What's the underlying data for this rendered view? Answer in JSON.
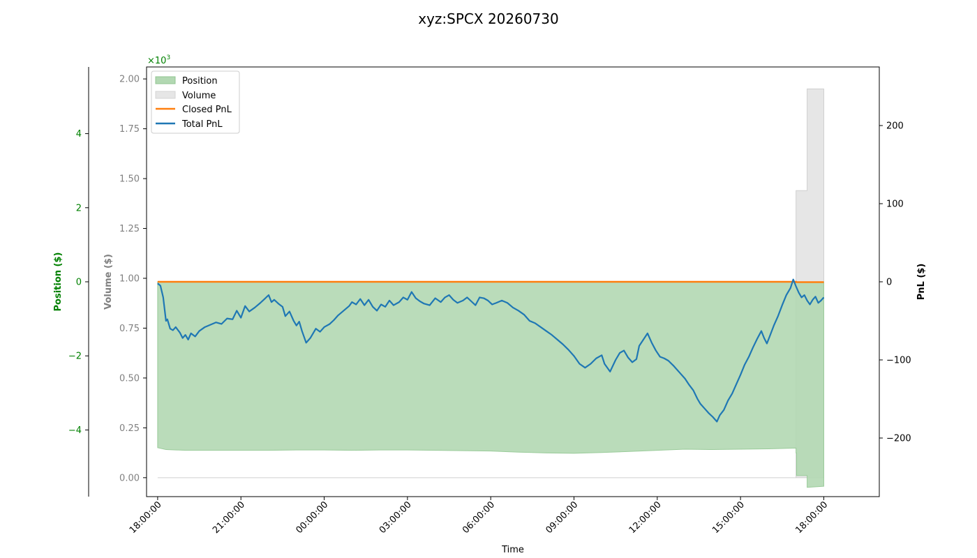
{
  "colors": {
    "position": "#008000",
    "position_fill": "#b2d8b2",
    "position_overlap_fill": "#a0c8a0",
    "volume": "#808080",
    "volume_fill": "#e6e6e6",
    "closed_pnl": "#ff7f0e",
    "total_pnl": "#1f77b4",
    "pnl_axis": "#000000"
  },
  "chart_data": {
    "type": "area",
    "title": "xyz:SPCX 20260730",
    "xlabel": "Time",
    "x_range_hours": [
      -0.4,
      26.0
    ],
    "x_ticks": [
      {
        "h": 0,
        "label": "18:00:00"
      },
      {
        "h": 3,
        "label": "21:00:00"
      },
      {
        "h": 6,
        "label": "00:00:00"
      },
      {
        "h": 9,
        "label": "03:00:00"
      },
      {
        "h": 12,
        "label": "06:00:00"
      },
      {
        "h": 15,
        "label": "09:00:00"
      },
      {
        "h": 18,
        "label": "12:00:00"
      },
      {
        "h": 21,
        "label": "15:00:00"
      },
      {
        "h": 24,
        "label": "18:00:00"
      }
    ],
    "axes": {
      "position": {
        "label": "Position ($)",
        "ylim": [
          -5.8,
          5.8
        ],
        "ticks": [
          4,
          2,
          0,
          -2,
          -4
        ],
        "tick_labels": [
          "4",
          "2",
          "0",
          "−2",
          "−4"
        ],
        "scale_label": "×10",
        "scale_exp": "3"
      },
      "volume": {
        "label": "Volume ($)",
        "ylim": [
          -0.095,
          2.06
        ],
        "ticks": [
          0,
          0.25,
          0.5,
          0.75,
          1.0,
          1.25,
          1.5,
          1.75,
          2.0
        ],
        "tick_labels": [
          "0.00",
          "0.25",
          "0.50",
          "0.75",
          "1.00",
          "1.25",
          "1.50",
          "1.75",
          "2.00"
        ]
      },
      "pnl": {
        "label": "PnL ($)",
        "ylim": [
          -275,
          275
        ],
        "ticks": [
          200,
          100,
          0,
          -100,
          -200
        ],
        "tick_labels": [
          "200",
          "100",
          "0",
          "−100",
          "−200"
        ]
      }
    },
    "legend": {
      "placement": "top-left",
      "entries": [
        "Position",
        "Volume",
        "Closed PnL",
        "Total PnL"
      ]
    },
    "series": [
      {
        "name": "Position",
        "axis": "position",
        "style": "area",
        "points": [
          [
            0,
            -4.48
          ],
          [
            0.3,
            -4.53
          ],
          [
            1,
            -4.55
          ],
          [
            2,
            -4.55
          ],
          [
            3,
            -4.55
          ],
          [
            4,
            -4.55
          ],
          [
            5,
            -4.54
          ],
          [
            6,
            -4.54
          ],
          [
            7,
            -4.55
          ],
          [
            8,
            -4.54
          ],
          [
            9,
            -4.54
          ],
          [
            10,
            -4.55
          ],
          [
            11,
            -4.56
          ],
          [
            12,
            -4.57
          ],
          [
            13,
            -4.6
          ],
          [
            14,
            -4.62
          ],
          [
            15,
            -4.63
          ],
          [
            16,
            -4.61
          ],
          [
            17,
            -4.58
          ],
          [
            18,
            -4.55
          ],
          [
            19,
            -4.52
          ],
          [
            20,
            -4.53
          ],
          [
            21,
            -4.52
          ],
          [
            22,
            -4.51
          ],
          [
            23.0,
            -4.49
          ],
          [
            23.0,
            -4.62
          ],
          [
            23.02,
            -4.62
          ],
          [
            23.02,
            -5.23
          ],
          [
            23.4,
            -5.23
          ],
          [
            23.4,
            -5.55
          ],
          [
            24.0,
            -5.52
          ]
        ]
      },
      {
        "name": "Volume",
        "axis": "volume",
        "style": "area",
        "points": [
          [
            0,
            0
          ],
          [
            23.0,
            0
          ],
          [
            23.0,
            1.44
          ],
          [
            23.4,
            1.44
          ],
          [
            23.4,
            1.95
          ],
          [
            24.0,
            1.95
          ]
        ]
      },
      {
        "name": "Closed PnL",
        "axis": "pnl",
        "style": "line",
        "points": [
          [
            0,
            0
          ],
          [
            23.0,
            0
          ],
          [
            23.0,
            -0.5
          ],
          [
            24.0,
            -0.5
          ]
        ]
      },
      {
        "name": "Total PnL",
        "axis": "pnl",
        "style": "line",
        "points": [
          [
            0,
            -2
          ],
          [
            0.1,
            -5
          ],
          [
            0.2,
            -20
          ],
          [
            0.25,
            -35
          ],
          [
            0.3,
            -50
          ],
          [
            0.35,
            -48
          ],
          [
            0.45,
            -60
          ],
          [
            0.55,
            -62
          ],
          [
            0.65,
            -58
          ],
          [
            0.8,
            -65
          ],
          [
            0.9,
            -72
          ],
          [
            1.0,
            -68
          ],
          [
            1.1,
            -74
          ],
          [
            1.2,
            -66
          ],
          [
            1.35,
            -70
          ],
          [
            1.5,
            -63
          ],
          [
            1.7,
            -58
          ],
          [
            1.9,
            -55
          ],
          [
            2.1,
            -52
          ],
          [
            2.3,
            -54
          ],
          [
            2.5,
            -47
          ],
          [
            2.7,
            -48
          ],
          [
            2.85,
            -37
          ],
          [
            3.0,
            -46
          ],
          [
            3.15,
            -31
          ],
          [
            3.3,
            -38
          ],
          [
            3.5,
            -33
          ],
          [
            3.7,
            -27
          ],
          [
            3.85,
            -22
          ],
          [
            4.0,
            -17
          ],
          [
            4.1,
            -26
          ],
          [
            4.2,
            -23
          ],
          [
            4.35,
            -28
          ],
          [
            4.5,
            -32
          ],
          [
            4.6,
            -44
          ],
          [
            4.75,
            -38
          ],
          [
            4.9,
            -50
          ],
          [
            5.0,
            -56
          ],
          [
            5.1,
            -51
          ],
          [
            5.2,
            -63
          ],
          [
            5.35,
            -78
          ],
          [
            5.5,
            -72
          ],
          [
            5.6,
            -66
          ],
          [
            5.7,
            -60
          ],
          [
            5.85,
            -64
          ],
          [
            6.0,
            -58
          ],
          [
            6.2,
            -54
          ],
          [
            6.35,
            -49
          ],
          [
            6.5,
            -43
          ],
          [
            6.7,
            -37
          ],
          [
            6.9,
            -31
          ],
          [
            7.0,
            -26
          ],
          [
            7.15,
            -29
          ],
          [
            7.3,
            -22
          ],
          [
            7.45,
            -30
          ],
          [
            7.6,
            -23
          ],
          [
            7.75,
            -32
          ],
          [
            7.9,
            -37
          ],
          [
            8.05,
            -29
          ],
          [
            8.2,
            -32
          ],
          [
            8.35,
            -24
          ],
          [
            8.5,
            -30
          ],
          [
            8.7,
            -26
          ],
          [
            8.85,
            -20
          ],
          [
            9.0,
            -23
          ],
          [
            9.15,
            -13
          ],
          [
            9.3,
            -21
          ],
          [
            9.45,
            -25
          ],
          [
            9.6,
            -28
          ],
          [
            9.8,
            -30
          ],
          [
            10.0,
            -21
          ],
          [
            10.2,
            -26
          ],
          [
            10.35,
            -20
          ],
          [
            10.5,
            -17
          ],
          [
            10.65,
            -23
          ],
          [
            10.8,
            -27
          ],
          [
            11.0,
            -24
          ],
          [
            11.15,
            -20
          ],
          [
            11.3,
            -25
          ],
          [
            11.45,
            -30
          ],
          [
            11.6,
            -20
          ],
          [
            11.75,
            -21
          ],
          [
            11.9,
            -24
          ],
          [
            12.05,
            -29
          ],
          [
            12.2,
            -27
          ],
          [
            12.4,
            -24
          ],
          [
            12.6,
            -27
          ],
          [
            12.8,
            -33
          ],
          [
            13.0,
            -37
          ],
          [
            13.2,
            -42
          ],
          [
            13.4,
            -50
          ],
          [
            13.6,
            -53
          ],
          [
            13.8,
            -58
          ],
          [
            14.0,
            -63
          ],
          [
            14.2,
            -68
          ],
          [
            14.4,
            -74
          ],
          [
            14.6,
            -80
          ],
          [
            14.8,
            -87
          ],
          [
            15.0,
            -95
          ],
          [
            15.2,
            -105
          ],
          [
            15.4,
            -110
          ],
          [
            15.6,
            -105
          ],
          [
            15.8,
            -98
          ],
          [
            16.0,
            -94
          ],
          [
            16.1,
            -105
          ],
          [
            16.3,
            -115
          ],
          [
            16.5,
            -100
          ],
          [
            16.65,
            -91
          ],
          [
            16.8,
            -88
          ],
          [
            16.95,
            -97
          ],
          [
            17.1,
            -103
          ],
          [
            17.25,
            -99
          ],
          [
            17.35,
            -82
          ],
          [
            17.5,
            -74
          ],
          [
            17.65,
            -66
          ],
          [
            17.8,
            -78
          ],
          [
            17.95,
            -88
          ],
          [
            18.1,
            -96
          ],
          [
            18.25,
            -98
          ],
          [
            18.4,
            -101
          ],
          [
            18.6,
            -108
          ],
          [
            18.8,
            -116
          ],
          [
            19.0,
            -124
          ],
          [
            19.15,
            -132
          ],
          [
            19.3,
            -139
          ],
          [
            19.45,
            -150
          ],
          [
            19.55,
            -156
          ],
          [
            19.7,
            -162
          ],
          [
            19.85,
            -168
          ],
          [
            20.0,
            -173
          ],
          [
            20.15,
            -179
          ],
          [
            20.25,
            -171
          ],
          [
            20.4,
            -164
          ],
          [
            20.55,
            -152
          ],
          [
            20.7,
            -143
          ],
          [
            20.85,
            -131
          ],
          [
            21.0,
            -119
          ],
          [
            21.15,
            -106
          ],
          [
            21.3,
            -96
          ],
          [
            21.45,
            -84
          ],
          [
            21.6,
            -73
          ],
          [
            21.75,
            -63
          ],
          [
            21.85,
            -72
          ],
          [
            21.95,
            -79
          ],
          [
            22.05,
            -70
          ],
          [
            22.2,
            -56
          ],
          [
            22.35,
            -44
          ],
          [
            22.5,
            -30
          ],
          [
            22.65,
            -17
          ],
          [
            22.8,
            -8
          ],
          [
            22.9,
            3
          ],
          [
            23.0,
            -6
          ],
          [
            23.1,
            -14
          ],
          [
            23.2,
            -20
          ],
          [
            23.3,
            -17
          ],
          [
            23.4,
            -24
          ],
          [
            23.5,
            -29
          ],
          [
            23.6,
            -23
          ],
          [
            23.7,
            -19
          ],
          [
            23.8,
            -27
          ],
          [
            23.9,
            -24
          ],
          [
            24.0,
            -20
          ]
        ]
      }
    ]
  }
}
